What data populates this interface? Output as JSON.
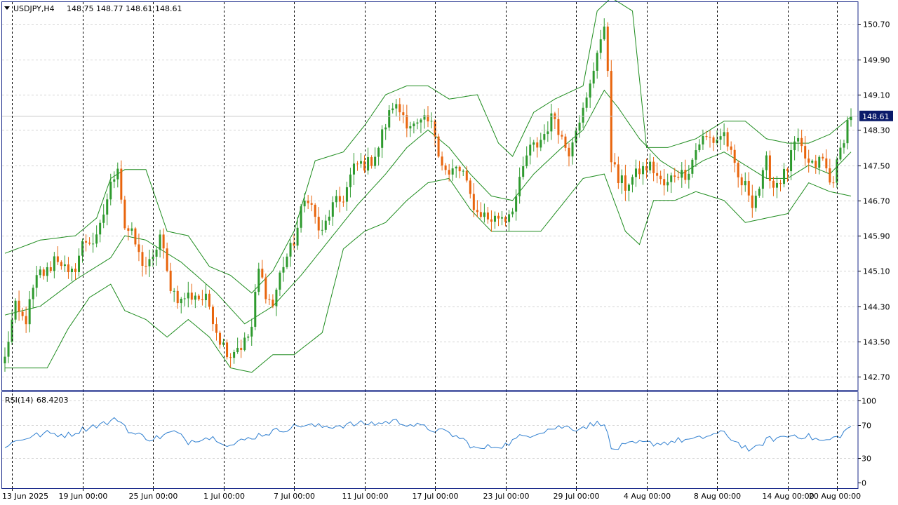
{
  "header": {
    "symbol": "USDJPY,H4",
    "ohlc": "148.75 148.77 148.61 148.61",
    "menu_icon": "triangle-down-icon"
  },
  "price_badge": "148.61",
  "colors": {
    "up": "#2e9a2e",
    "down": "#e8640c",
    "bands": "#1e8c1e",
    "rsi": "#2f7fd0",
    "grid": "#d4d4d4",
    "separator": "#000000",
    "badge_bg": "#0a1a6a",
    "frame": "#1a2a8a"
  },
  "chart_data": [
    {
      "type": "candlestick",
      "indicator": "Bollinger Bands",
      "ylim": [
        142.4,
        151.2
      ],
      "y_ticks": [
        "150.70",
        "149.90",
        "149.10",
        "148.30",
        "147.50",
        "146.70",
        "145.90",
        "145.10",
        "144.30",
        "143.50",
        "142.70"
      ],
      "x_ticks": [
        "13 Jun 2025",
        "19 Jun 00:00",
        "25 Jun 00:00",
        "1 Jul 00:00",
        "7 Jul 00:00",
        "11 Jul 00:00",
        "17 Jul 00:00",
        "23 Jul 00:00",
        "29 Jul 00:00",
        "4 Aug 00:00",
        "8 Aug 00:00",
        "14 Aug 00:00",
        "20 Aug 00:00"
      ],
      "last_price": 148.61,
      "close_path": [
        [
          0,
          143.1
        ],
        [
          3,
          144.2
        ],
        [
          6,
          144.1
        ],
        [
          10,
          145.0
        ],
        [
          14,
          145.4
        ],
        [
          18,
          145.0
        ],
        [
          22,
          145.6
        ],
        [
          26,
          145.9
        ],
        [
          30,
          146.9
        ],
        [
          32,
          147.6
        ],
        [
          34,
          146.2
        ],
        [
          38,
          145.4
        ],
        [
          42,
          145.3
        ],
        [
          44,
          145.8
        ],
        [
          46,
          145.1
        ],
        [
          50,
          144.3
        ],
        [
          54,
          144.7
        ],
        [
          58,
          144.2
        ],
        [
          62,
          143.5
        ],
        [
          64,
          143.1
        ],
        [
          68,
          143.6
        ],
        [
          70,
          143.8
        ],
        [
          72,
          145.0
        ],
        [
          76,
          144.4
        ],
        [
          80,
          145.4
        ],
        [
          84,
          146.4
        ],
        [
          86,
          146.7
        ],
        [
          90,
          146.0
        ],
        [
          94,
          146.6
        ],
        [
          98,
          147.2
        ],
        [
          102,
          147.6
        ],
        [
          106,
          147.8
        ],
        [
          110,
          149.0
        ],
        [
          114,
          148.4
        ],
        [
          118,
          148.5
        ],
        [
          122,
          148.2
        ],
        [
          126,
          147.2
        ],
        [
          130,
          147.4
        ],
        [
          134,
          146.3
        ],
        [
          138,
          146.4
        ],
        [
          142,
          146.2
        ],
        [
          145,
          146.9
        ],
        [
          148,
          147.6
        ],
        [
          152,
          148.2
        ],
        [
          156,
          148.5
        ],
        [
          160,
          147.9
        ],
        [
          164,
          148.7
        ],
        [
          168,
          150.1
        ],
        [
          170,
          150.4
        ],
        [
          171,
          149.7
        ],
        [
          172,
          147.8
        ],
        [
          174,
          147.2
        ],
        [
          176,
          146.9
        ],
        [
          180,
          147.5
        ],
        [
          184,
          147.3
        ],
        [
          188,
          147.1
        ],
        [
          192,
          147.3
        ],
        [
          196,
          147.8
        ],
        [
          200,
          148.2
        ],
        [
          204,
          148.1
        ],
        [
          208,
          147.3
        ],
        [
          212,
          146.6
        ],
        [
          216,
          147.6
        ],
        [
          218,
          146.9
        ],
        [
          220,
          147.2
        ],
        [
          224,
          147.9
        ],
        [
          228,
          147.6
        ],
        [
          232,
          147.5
        ],
        [
          234,
          147.1
        ],
        [
          236,
          147.6
        ],
        [
          238,
          148.1
        ],
        [
          240,
          148.6
        ]
      ],
      "bands_middle": [
        [
          0,
          144.1
        ],
        [
          10,
          144.3
        ],
        [
          20,
          144.9
        ],
        [
          30,
          145.4
        ],
        [
          34,
          145.9
        ],
        [
          40,
          145.8
        ],
        [
          50,
          145.3
        ],
        [
          60,
          144.6
        ],
        [
          68,
          143.9
        ],
        [
          76,
          144.3
        ],
        [
          84,
          145.0
        ],
        [
          92,
          145.8
        ],
        [
          100,
          146.6
        ],
        [
          108,
          147.3
        ],
        [
          114,
          147.9
        ],
        [
          120,
          148.3
        ],
        [
          126,
          147.9
        ],
        [
          132,
          147.3
        ],
        [
          138,
          146.8
        ],
        [
          144,
          146.7
        ],
        [
          150,
          147.3
        ],
        [
          158,
          147.9
        ],
        [
          164,
          148.3
        ],
        [
          170,
          149.2
        ],
        [
          174,
          148.8
        ],
        [
          180,
          148.1
        ],
        [
          186,
          147.6
        ],
        [
          192,
          147.3
        ],
        [
          198,
          147.6
        ],
        [
          204,
          147.8
        ],
        [
          210,
          147.5
        ],
        [
          216,
          147.2
        ],
        [
          222,
          147.2
        ],
        [
          228,
          147.5
        ],
        [
          234,
          147.3
        ],
        [
          240,
          147.8
        ]
      ],
      "bands_upper": [
        [
          0,
          145.5
        ],
        [
          10,
          145.8
        ],
        [
          20,
          145.9
        ],
        [
          26,
          146.3
        ],
        [
          30,
          147.2
        ],
        [
          34,
          147.4
        ],
        [
          40,
          147.4
        ],
        [
          46,
          146.0
        ],
        [
          52,
          145.9
        ],
        [
          58,
          145.2
        ],
        [
          64,
          145.0
        ],
        [
          70,
          144.6
        ],
        [
          76,
          145.1
        ],
        [
          82,
          146.0
        ],
        [
          88,
          147.6
        ],
        [
          96,
          147.8
        ],
        [
          102,
          148.4
        ],
        [
          108,
          149.1
        ],
        [
          114,
          149.3
        ],
        [
          120,
          149.3
        ],
        [
          126,
          149.0
        ],
        [
          134,
          149.1
        ],
        [
          140,
          148.0
        ],
        [
          144,
          147.7
        ],
        [
          150,
          148.7
        ],
        [
          156,
          149.0
        ],
        [
          164,
          149.3
        ],
        [
          168,
          151.0
        ],
        [
          172,
          151.3
        ],
        [
          178,
          151.0
        ],
        [
          182,
          147.9
        ],
        [
          188,
          147.9
        ],
        [
          196,
          148.1
        ],
        [
          204,
          148.5
        ],
        [
          210,
          148.5
        ],
        [
          216,
          148.1
        ],
        [
          222,
          148.0
        ],
        [
          228,
          148.0
        ],
        [
          234,
          148.2
        ],
        [
          240,
          148.6
        ]
      ],
      "bands_lower": [
        [
          0,
          142.9
        ],
        [
          6,
          142.9
        ],
        [
          12,
          142.9
        ],
        [
          18,
          143.8
        ],
        [
          24,
          144.5
        ],
        [
          30,
          144.8
        ],
        [
          34,
          144.2
        ],
        [
          40,
          144.0
        ],
        [
          46,
          143.6
        ],
        [
          52,
          144.0
        ],
        [
          58,
          143.6
        ],
        [
          64,
          142.9
        ],
        [
          70,
          142.8
        ],
        [
          76,
          143.2
        ],
        [
          82,
          143.2
        ],
        [
          90,
          143.7
        ],
        [
          96,
          145.6
        ],
        [
          102,
          146.0
        ],
        [
          108,
          146.2
        ],
        [
          114,
          146.7
        ],
        [
          120,
          147.1
        ],
        [
          126,
          147.2
        ],
        [
          132,
          146.5
        ],
        [
          138,
          146.0
        ],
        [
          144,
          146.0
        ],
        [
          152,
          146.0
        ],
        [
          158,
          146.6
        ],
        [
          164,
          147.2
        ],
        [
          170,
          147.3
        ],
        [
          176,
          146.0
        ],
        [
          180,
          145.7
        ],
        [
          184,
          146.7
        ],
        [
          190,
          146.7
        ],
        [
          196,
          146.9
        ],
        [
          204,
          146.7
        ],
        [
          210,
          146.2
        ],
        [
          216,
          146.3
        ],
        [
          222,
          146.4
        ],
        [
          228,
          147.1
        ],
        [
          234,
          146.9
        ],
        [
          240,
          146.8
        ]
      ]
    },
    {
      "type": "line",
      "indicator": "RSI",
      "label": "RSI(14)",
      "value": "68.4203",
      "ylim": [
        0,
        100
      ],
      "y_ticks": [
        "100",
        "70",
        "30",
        "0"
      ],
      "levels": [
        30,
        70
      ],
      "series": [
        [
          0,
          45
        ],
        [
          6,
          55
        ],
        [
          12,
          60
        ],
        [
          18,
          58
        ],
        [
          24,
          68
        ],
        [
          30,
          74
        ],
        [
          32,
          78
        ],
        [
          36,
          60
        ],
        [
          42,
          53
        ],
        [
          48,
          62
        ],
        [
          52,
          50
        ],
        [
          56,
          55
        ],
        [
          60,
          54
        ],
        [
          64,
          45
        ],
        [
          68,
          52
        ],
        [
          72,
          58
        ],
        [
          76,
          62
        ],
        [
          80,
          66
        ],
        [
          84,
          70
        ],
        [
          90,
          68
        ],
        [
          96,
          70
        ],
        [
          102,
          72
        ],
        [
          106,
          72
        ],
        [
          110,
          75
        ],
        [
          114,
          72
        ],
        [
          118,
          68
        ],
        [
          122,
          64
        ],
        [
          126,
          60
        ],
        [
          130,
          52
        ],
        [
          134,
          40
        ],
        [
          138,
          44
        ],
        [
          142,
          46
        ],
        [
          146,
          55
        ],
        [
          150,
          60
        ],
        [
          154,
          65
        ],
        [
          158,
          68
        ],
        [
          162,
          66
        ],
        [
          168,
          72
        ],
        [
          170,
          74
        ],
        [
          172,
          40
        ],
        [
          176,
          45
        ],
        [
          180,
          48
        ],
        [
          186,
          48
        ],
        [
          192,
          52
        ],
        [
          196,
          52
        ],
        [
          200,
          58
        ],
        [
          204,
          60
        ],
        [
          208,
          48
        ],
        [
          212,
          38
        ],
        [
          216,
          52
        ],
        [
          220,
          55
        ],
        [
          224,
          58
        ],
        [
          228,
          56
        ],
        [
          232,
          50
        ],
        [
          236,
          55
        ],
        [
          240,
          68
        ]
      ]
    }
  ]
}
